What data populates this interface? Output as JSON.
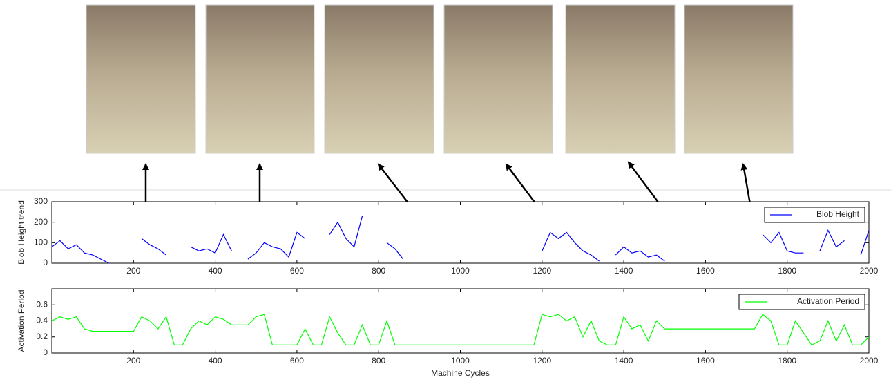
{
  "chart_data": [
    {
      "type": "line",
      "ylabel": "Blob Height trend",
      "legend": "upper right",
      "x": [
        0,
        20,
        40,
        60,
        80,
        100,
        120,
        140,
        160,
        180,
        200,
        220,
        240,
        260,
        280,
        300,
        320,
        340,
        360,
        380,
        400,
        420,
        440,
        460,
        480,
        500,
        520,
        540,
        560,
        580,
        600,
        620,
        640,
        660,
        680,
        700,
        720,
        740,
        760,
        780,
        800,
        820,
        840,
        860,
        880,
        900,
        920,
        940,
        960,
        980,
        1000,
        1020,
        1040,
        1060,
        1080,
        1100,
        1120,
        1140,
        1160,
        1180,
        1200,
        1220,
        1240,
        1260,
        1280,
        1300,
        1320,
        1340,
        1360,
        1380,
        1400,
        1420,
        1440,
        1460,
        1480,
        1500,
        1520,
        1540,
        1560,
        1580,
        1600,
        1620,
        1640,
        1660,
        1680,
        1700,
        1720,
        1740,
        1760,
        1780,
        1800,
        1820,
        1840,
        1860,
        1880,
        1900,
        1920,
        1940,
        1960,
        1980,
        2000
      ],
      "series": [
        {
          "name": "Blob Height",
          "color": "#0000ff",
          "values": [
            80,
            110,
            70,
            90,
            50,
            40,
            20,
            0,
            null,
            null,
            null,
            120,
            90,
            70,
            40,
            null,
            null,
            80,
            60,
            70,
            50,
            140,
            60,
            null,
            20,
            50,
            100,
            80,
            70,
            30,
            150,
            120,
            null,
            null,
            140,
            200,
            120,
            80,
            230,
            null,
            null,
            100,
            70,
            20,
            null,
            null,
            null,
            null,
            null,
            null,
            null,
            null,
            null,
            null,
            null,
            null,
            null,
            null,
            null,
            null,
            60,
            150,
            120,
            150,
            100,
            60,
            40,
            10,
            null,
            40,
            80,
            50,
            60,
            30,
            40,
            10,
            null,
            null,
            null,
            null,
            null,
            null,
            null,
            null,
            null,
            null,
            null,
            140,
            100,
            150,
            60,
            50,
            50,
            null,
            60,
            160,
            80,
            110,
            null,
            40,
            160
          ]
        }
      ],
      "xlim": [
        0,
        2000
      ],
      "ylim": [
        0,
        300
      ],
      "xticks": [
        200,
        400,
        600,
        800,
        1000,
        1200,
        1400,
        1600,
        1800,
        2000
      ],
      "yticks": [
        0,
        100,
        200,
        300
      ]
    },
    {
      "type": "line",
      "ylabel": "Activation Period",
      "xlabel": "Machine Cycles",
      "legend": "upper right",
      "x": [
        0,
        20,
        40,
        60,
        80,
        100,
        120,
        140,
        160,
        180,
        200,
        220,
        240,
        260,
        280,
        300,
        320,
        340,
        360,
        380,
        400,
        420,
        440,
        460,
        480,
        500,
        520,
        540,
        560,
        580,
        600,
        620,
        640,
        660,
        680,
        700,
        720,
        740,
        760,
        780,
        800,
        820,
        840,
        860,
        880,
        900,
        920,
        940,
        960,
        980,
        1000,
        1020,
        1040,
        1060,
        1080,
        1100,
        1120,
        1140,
        1160,
        1180,
        1200,
        1220,
        1240,
        1260,
        1280,
        1300,
        1320,
        1340,
        1360,
        1380,
        1400,
        1420,
        1440,
        1460,
        1480,
        1500,
        1520,
        1540,
        1560,
        1580,
        1600,
        1620,
        1640,
        1660,
        1680,
        1700,
        1720,
        1740,
        1760,
        1780,
        1800,
        1820,
        1840,
        1860,
        1880,
        1900,
        1920,
        1940,
        1960,
        1980,
        2000
      ],
      "series": [
        {
          "name": "Activation Period",
          "color": "#00ff00",
          "values": [
            0.4,
            0.45,
            0.42,
            0.45,
            0.3,
            0.27,
            0.27,
            0.27,
            0.27,
            0.27,
            0.27,
            0.45,
            0.4,
            0.3,
            0.45,
            0.1,
            0.1,
            0.3,
            0.4,
            0.35,
            0.45,
            0.42,
            0.35,
            0.35,
            0.35,
            0.45,
            0.48,
            0.1,
            0.1,
            0.1,
            0.1,
            0.3,
            0.1,
            0.1,
            0.45,
            0.25,
            0.1,
            0.1,
            0.35,
            0.1,
            0.1,
            0.4,
            0.1,
            0.1,
            0.1,
            0.1,
            0.1,
            0.1,
            0.1,
            0.1,
            0.1,
            0.1,
            0.1,
            0.1,
            0.1,
            0.1,
            0.1,
            0.1,
            0.1,
            0.1,
            0.48,
            0.45,
            0.48,
            0.4,
            0.45,
            0.2,
            0.4,
            0.15,
            0.1,
            0.1,
            0.45,
            0.3,
            0.35,
            0.15,
            0.4,
            0.3,
            0.3,
            0.3,
            0.3,
            0.3,
            0.3,
            0.3,
            0.3,
            0.3,
            0.3,
            0.3,
            0.3,
            0.48,
            0.4,
            0.1,
            0.1,
            0.4,
            0.25,
            0.1,
            0.15,
            0.4,
            0.15,
            0.35,
            0.1,
            0.1,
            0.2
          ]
        }
      ],
      "xlim": [
        0,
        2000
      ],
      "ylim": [
        0,
        0.8
      ],
      "xticks": [
        200,
        400,
        600,
        800,
        1000,
        1200,
        1400,
        1600,
        1800,
        2000
      ],
      "yticks": [
        0,
        0.2,
        0.4,
        0.6
      ]
    }
  ]
}
